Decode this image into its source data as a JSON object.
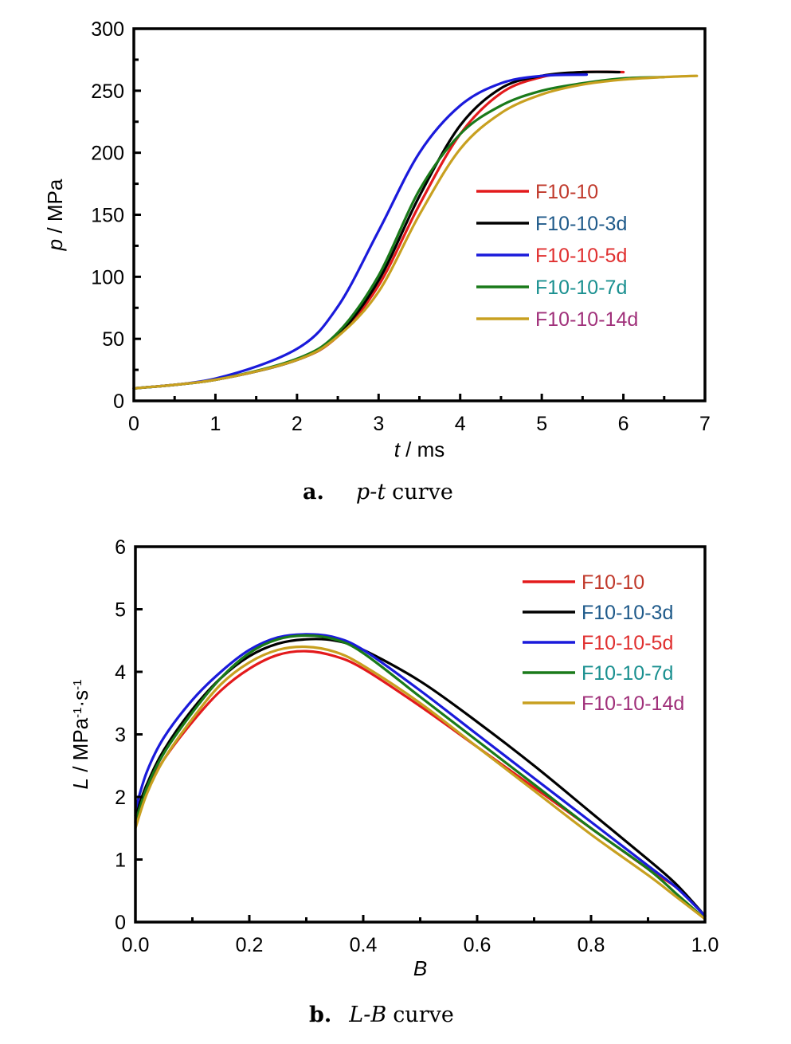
{
  "figure": {
    "captions": [
      {
        "letter": "a.",
        "text": "p-t curve",
        "italic_part": "p-t",
        "plain_part": "curve"
      },
      {
        "letter": "b.",
        "text": "L-B curve",
        "italic_part": "L-B",
        "plain_part": "curve"
      }
    ]
  },
  "chart_data": [
    {
      "type": "line",
      "panel": "a",
      "xlabel": "t / ms",
      "xlabel_italic": "t",
      "xlabel_rest": " / ms",
      "ylabel": "p / MPa",
      "ylabel_italic": "p",
      "ylabel_rest": " / MPa",
      "xlim": [
        0,
        7
      ],
      "ylim": [
        0,
        300
      ],
      "xticks": [
        0,
        1,
        2,
        3,
        4,
        5,
        6,
        7
      ],
      "yticks": [
        0,
        50,
        100,
        150,
        200,
        250,
        300
      ],
      "xtick_labels": [
        "0",
        "1",
        "2",
        "3",
        "4",
        "5",
        "6",
        "7"
      ],
      "ytick_labels": [
        "0",
        "50",
        "100",
        "150",
        "200",
        "250",
        "300"
      ],
      "grid": false,
      "legend_position": "center-right",
      "series": [
        {
          "name": "F10-10",
          "color": "#e31a1c",
          "label_color": "#c0392b",
          "x": [
            0,
            1,
            2,
            2.5,
            3,
            3.5,
            4,
            4.5,
            5,
            5.5,
            6.0
          ],
          "y": [
            10,
            17,
            33,
            52,
            93,
            158,
            215,
            248,
            261,
            265,
            265
          ]
        },
        {
          "name": "F10-10-3d",
          "color": "#000000",
          "label_color": "#1f5a8a",
          "x": [
            0,
            1,
            2,
            2.5,
            3,
            3.5,
            4,
            4.5,
            5,
            5.5,
            5.95
          ],
          "y": [
            10,
            17,
            33,
            53,
            97,
            165,
            222,
            252,
            262,
            265,
            265
          ]
        },
        {
          "name": "F10-10-5d",
          "color": "#1a1adb",
          "label_color": "#e03030",
          "x": [
            0,
            1,
            2,
            2.5,
            3,
            3.5,
            4,
            4.5,
            5,
            5.55
          ],
          "y": [
            10,
            18,
            42,
            76,
            137,
            200,
            238,
            256,
            262,
            263
          ]
        },
        {
          "name": "F10-10-7d",
          "color": "#1a7a1a",
          "label_color": "#1a9090",
          "x": [
            0,
            1,
            2,
            2.5,
            3,
            3.5,
            4,
            4.5,
            5,
            5.5,
            6,
            6.5
          ],
          "y": [
            10,
            17,
            34,
            55,
            101,
            170,
            215,
            238,
            250,
            256,
            260,
            261
          ]
        },
        {
          "name": "F10-10-14d",
          "color": "#c8a020",
          "label_color": "#a0307a",
          "x": [
            0,
            1,
            2,
            2.5,
            3,
            3.5,
            4,
            4.5,
            5,
            5.5,
            6,
            6.5,
            6.9
          ],
          "y": [
            10,
            17,
            33,
            52,
            88,
            150,
            203,
            232,
            247,
            255,
            259,
            261,
            262
          ]
        }
      ]
    },
    {
      "type": "line",
      "panel": "b",
      "xlabel": "B",
      "xlabel_italic": "B",
      "xlabel_rest": "",
      "ylabel": "L / MPa-1·s-1",
      "ylabel_italic": "L",
      "ylabel_rest": " / MPa",
      "ylabel_sup1": "-1",
      "ylabel_mid": "·s",
      "ylabel_sup2": "-1",
      "xlim": [
        0,
        1
      ],
      "ylim": [
        0,
        6
      ],
      "xticks": [
        0,
        0.2,
        0.4,
        0.6,
        0.8,
        1.0
      ],
      "yticks": [
        0,
        1,
        2,
        3,
        4,
        5,
        6
      ],
      "xtick_labels": [
        "0.0",
        "0.2",
        "0.4",
        "0.6",
        "0.8",
        "1.0"
      ],
      "ytick_labels": [
        "0",
        "1",
        "2",
        "3",
        "4",
        "5",
        "6"
      ],
      "grid": false,
      "legend_position": "top-right",
      "series": [
        {
          "name": "F10-10",
          "color": "#e31a1c",
          "label_color": "#c0392b",
          "x": [
            0,
            0.02,
            0.05,
            0.1,
            0.15,
            0.2,
            0.25,
            0.3,
            0.35,
            0.4,
            0.5,
            0.6,
            0.7,
            0.8,
            0.9,
            0.95,
            1.0
          ],
          "y": [
            1.6,
            2.1,
            2.6,
            3.2,
            3.7,
            4.05,
            4.27,
            4.33,
            4.25,
            4.05,
            3.45,
            2.8,
            2.15,
            1.5,
            0.85,
            0.55,
            0.1
          ]
        },
        {
          "name": "F10-10-3d",
          "color": "#000000",
          "label_color": "#1f5a8a",
          "x": [
            0,
            0.02,
            0.05,
            0.1,
            0.15,
            0.2,
            0.25,
            0.3,
            0.35,
            0.4,
            0.5,
            0.6,
            0.7,
            0.8,
            0.9,
            0.95,
            1.0
          ],
          "y": [
            1.7,
            2.2,
            2.75,
            3.4,
            3.9,
            4.25,
            4.45,
            4.52,
            4.5,
            4.35,
            3.85,
            3.2,
            2.5,
            1.75,
            1.0,
            0.6,
            0.1
          ]
        },
        {
          "name": "F10-10-5d",
          "color": "#1a1adb",
          "label_color": "#e03030",
          "x": [
            0,
            0.02,
            0.05,
            0.1,
            0.15,
            0.2,
            0.25,
            0.3,
            0.35,
            0.4,
            0.5,
            0.6,
            0.7,
            0.8,
            0.9,
            0.95,
            1.0
          ],
          "y": [
            1.8,
            2.4,
            2.95,
            3.55,
            4.0,
            4.35,
            4.55,
            4.6,
            4.55,
            4.35,
            3.7,
            3.0,
            2.3,
            1.6,
            0.9,
            0.55,
            0.1
          ]
        },
        {
          "name": "F10-10-7d",
          "color": "#1a7a1a",
          "label_color": "#1a9090",
          "x": [
            0,
            0.02,
            0.05,
            0.1,
            0.15,
            0.2,
            0.25,
            0.3,
            0.35,
            0.4,
            0.5,
            0.6,
            0.7,
            0.8,
            0.9,
            0.95,
            1.0
          ],
          "y": [
            1.6,
            2.15,
            2.7,
            3.35,
            3.9,
            4.3,
            4.52,
            4.58,
            4.52,
            4.3,
            3.6,
            2.9,
            2.2,
            1.5,
            0.85,
            0.45,
            0.05
          ]
        },
        {
          "name": "F10-10-14d",
          "color": "#c8a020",
          "label_color": "#a0307a",
          "x": [
            0,
            0.02,
            0.05,
            0.1,
            0.15,
            0.2,
            0.25,
            0.3,
            0.35,
            0.4,
            0.5,
            0.6,
            0.7,
            0.8,
            0.9,
            0.95,
            1.0
          ],
          "y": [
            1.5,
            2.05,
            2.6,
            3.25,
            3.8,
            4.15,
            4.35,
            4.4,
            4.32,
            4.1,
            3.5,
            2.8,
            2.1,
            1.4,
            0.75,
            0.4,
            0.05
          ]
        }
      ]
    }
  ]
}
